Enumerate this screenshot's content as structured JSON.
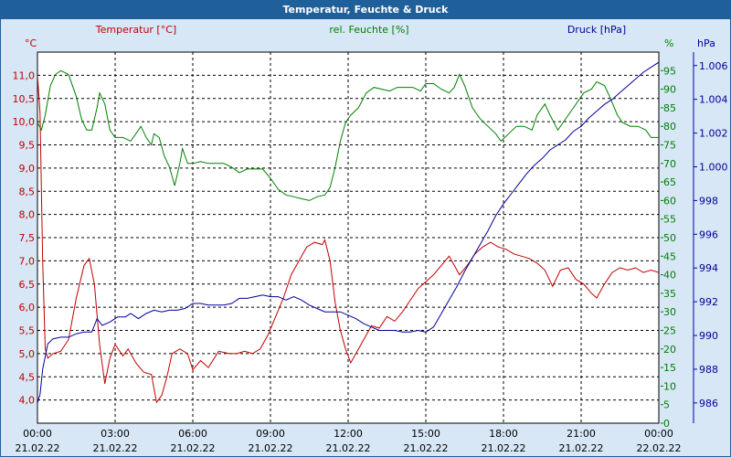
{
  "window": {
    "title": "Temperatur, Feuchte & Druck"
  },
  "chart_data": {
    "type": "line",
    "title": "Temperatur, Feuchte & Druck",
    "xlabel": "",
    "grid": true,
    "x": {
      "unit": "hours",
      "min": 0,
      "max": 24
    },
    "x_ticks": [
      {
        "h": 0,
        "time": "00:00",
        "date": "21.02.22"
      },
      {
        "h": 3,
        "time": "03:00",
        "date": "21.02.22"
      },
      {
        "h": 6,
        "time": "06:00",
        "date": "21.02.22"
      },
      {
        "h": 9,
        "time": "09:00",
        "date": "21.02.22"
      },
      {
        "h": 12,
        "time": "12:00",
        "date": "21.02.22"
      },
      {
        "h": 15,
        "time": "15:00",
        "date": "21.02.22"
      },
      {
        "h": 18,
        "time": "18:00",
        "date": "21.02.22"
      },
      {
        "h": 21,
        "time": "21:00",
        "date": "21.02.22"
      },
      {
        "h": 24,
        "time": "00:00",
        "date": "22.02.22"
      }
    ],
    "axes": {
      "temperature": {
        "label": "Temperatur [°C]",
        "unit_label": "°C",
        "ylim": [
          3.5,
          11.5
        ],
        "ticks": [
          "4,0",
          "4,5",
          "5,0",
          "5,5",
          "6,0",
          "6,5",
          "7,0",
          "7,5",
          "8,0",
          "8,5",
          "9,0",
          "9,5",
          "10,0",
          "10,5",
          "11,0"
        ],
        "color": "#c00000"
      },
      "humidity": {
        "label": "rel. Feuchte [%]",
        "unit_label": "%",
        "ylim": [
          0,
          100
        ],
        "ticks": [
          "0",
          "5",
          "10",
          "15",
          "20",
          "25",
          "30",
          "35",
          "40",
          "45",
          "50",
          "55",
          "60",
          "65",
          "70",
          "75",
          "80",
          "85",
          "90",
          "95"
        ],
        "color": "#008000"
      },
      "pressure": {
        "label": "Druck [hPa]",
        "unit_label": "hPa",
        "ylim": [
          984.8,
          1006.8
        ],
        "ticks": [
          "986",
          "988",
          "990",
          "992",
          "994",
          "996",
          "998",
          "1.000",
          "1.002",
          "1.004",
          "1.006"
        ],
        "color": "#000099"
      }
    },
    "series": [
      {
        "name": "Temperatur [°C]",
        "axis": "temperature",
        "color": "#c00000",
        "points": [
          [
            0,
            11.0
          ],
          [
            0.1,
            10.2
          ],
          [
            0.2,
            7.0
          ],
          [
            0.3,
            5.1
          ],
          [
            0.4,
            4.9
          ],
          [
            0.6,
            5.0
          ],
          [
            0.9,
            5.05
          ],
          [
            1.2,
            5.3
          ],
          [
            1.5,
            6.2
          ],
          [
            1.8,
            6.9
          ],
          [
            2.0,
            7.05
          ],
          [
            2.2,
            6.5
          ],
          [
            2.4,
            5.2
          ],
          [
            2.6,
            4.35
          ],
          [
            2.8,
            4.9
          ],
          [
            3.0,
            5.2
          ],
          [
            3.3,
            4.95
          ],
          [
            3.5,
            5.1
          ],
          [
            3.8,
            4.8
          ],
          [
            4.1,
            4.6
          ],
          [
            4.4,
            4.55
          ],
          [
            4.6,
            3.95
          ],
          [
            4.8,
            4.1
          ],
          [
            5.0,
            4.5
          ],
          [
            5.2,
            5.0
          ],
          [
            5.5,
            5.1
          ],
          [
            5.8,
            5.0
          ],
          [
            6.0,
            4.65
          ],
          [
            6.3,
            4.85
          ],
          [
            6.6,
            4.7
          ],
          [
            7.0,
            5.05
          ],
          [
            7.4,
            5.0
          ],
          [
            7.7,
            5.0
          ],
          [
            8.0,
            5.05
          ],
          [
            8.3,
            5.0
          ],
          [
            8.6,
            5.1
          ],
          [
            8.9,
            5.4
          ],
          [
            9.2,
            5.8
          ],
          [
            9.5,
            6.2
          ],
          [
            9.8,
            6.7
          ],
          [
            10.1,
            7.0
          ],
          [
            10.4,
            7.3
          ],
          [
            10.7,
            7.4
          ],
          [
            11.0,
            7.35
          ],
          [
            11.1,
            7.45
          ],
          [
            11.3,
            7.0
          ],
          [
            11.5,
            6.1
          ],
          [
            11.7,
            5.5
          ],
          [
            11.9,
            5.1
          ],
          [
            12.1,
            4.8
          ],
          [
            12.3,
            5.0
          ],
          [
            12.6,
            5.3
          ],
          [
            12.9,
            5.6
          ],
          [
            13.2,
            5.55
          ],
          [
            13.5,
            5.8
          ],
          [
            13.8,
            5.7
          ],
          [
            14.1,
            5.9
          ],
          [
            14.4,
            6.15
          ],
          [
            14.7,
            6.4
          ],
          [
            15.0,
            6.55
          ],
          [
            15.3,
            6.7
          ],
          [
            15.6,
            6.9
          ],
          [
            15.9,
            7.1
          ],
          [
            16.1,
            6.9
          ],
          [
            16.3,
            6.7
          ],
          [
            16.6,
            6.9
          ],
          [
            16.9,
            7.15
          ],
          [
            17.2,
            7.3
          ],
          [
            17.5,
            7.4
          ],
          [
            17.8,
            7.3
          ],
          [
            18.1,
            7.25
          ],
          [
            18.4,
            7.15
          ],
          [
            18.7,
            7.1
          ],
          [
            19.0,
            7.05
          ],
          [
            19.3,
            6.95
          ],
          [
            19.6,
            6.8
          ],
          [
            19.9,
            6.45
          ],
          [
            20.2,
            6.8
          ],
          [
            20.5,
            6.85
          ],
          [
            20.8,
            6.6
          ],
          [
            21.1,
            6.5
          ],
          [
            21.4,
            6.3
          ],
          [
            21.6,
            6.2
          ],
          [
            21.9,
            6.5
          ],
          [
            22.2,
            6.75
          ],
          [
            22.5,
            6.85
          ],
          [
            22.8,
            6.8
          ],
          [
            23.1,
            6.85
          ],
          [
            23.4,
            6.75
          ],
          [
            23.7,
            6.8
          ],
          [
            24.0,
            6.75
          ]
        ]
      },
      {
        "name": "rel. Feuchte [%]",
        "axis": "humidity",
        "color": "#008000",
        "points": [
          [
            0,
            81
          ],
          [
            0.15,
            79
          ],
          [
            0.3,
            83
          ],
          [
            0.5,
            91
          ],
          [
            0.7,
            94
          ],
          [
            0.9,
            95
          ],
          [
            1.2,
            94
          ],
          [
            1.5,
            88
          ],
          [
            1.7,
            82
          ],
          [
            1.9,
            79
          ],
          [
            2.1,
            79
          ],
          [
            2.3,
            85
          ],
          [
            2.4,
            89
          ],
          [
            2.6,
            86
          ],
          [
            2.8,
            79
          ],
          [
            3.0,
            77
          ],
          [
            3.3,
            77
          ],
          [
            3.6,
            76
          ],
          [
            3.8,
            78
          ],
          [
            4.0,
            80
          ],
          [
            4.2,
            77
          ],
          [
            4.4,
            75
          ],
          [
            4.5,
            78
          ],
          [
            4.7,
            77
          ],
          [
            4.9,
            72
          ],
          [
            5.1,
            69
          ],
          [
            5.3,
            64
          ],
          [
            5.5,
            70
          ],
          [
            5.6,
            74
          ],
          [
            5.8,
            70
          ],
          [
            6.0,
            70
          ],
          [
            6.3,
            70.5
          ],
          [
            6.6,
            70
          ],
          [
            6.9,
            70
          ],
          [
            7.2,
            70
          ],
          [
            7.5,
            69
          ],
          [
            7.8,
            67.5
          ],
          [
            8.1,
            68.5
          ],
          [
            8.4,
            68.5
          ],
          [
            8.7,
            68.5
          ],
          [
            9.0,
            66
          ],
          [
            9.3,
            63
          ],
          [
            9.6,
            61.5
          ],
          [
            9.9,
            61
          ],
          [
            10.2,
            60.5
          ],
          [
            10.5,
            60
          ],
          [
            10.8,
            61
          ],
          [
            11.1,
            61.5
          ],
          [
            11.3,
            63.5
          ],
          [
            11.5,
            69
          ],
          [
            11.7,
            76
          ],
          [
            11.9,
            81
          ],
          [
            12.1,
            83
          ],
          [
            12.4,
            85
          ],
          [
            12.7,
            89
          ],
          [
            13.0,
            90.5
          ],
          [
            13.3,
            90
          ],
          [
            13.6,
            89.5
          ],
          [
            13.9,
            90.5
          ],
          [
            14.2,
            90.5
          ],
          [
            14.5,
            90.5
          ],
          [
            14.8,
            89.5
          ],
          [
            15.0,
            91.5
          ],
          [
            15.3,
            91.5
          ],
          [
            15.6,
            90
          ],
          [
            15.9,
            89
          ],
          [
            16.1,
            90.5
          ],
          [
            16.3,
            94
          ],
          [
            16.5,
            91
          ],
          [
            16.8,
            85
          ],
          [
            17.1,
            82
          ],
          [
            17.4,
            80
          ],
          [
            17.7,
            78
          ],
          [
            17.9,
            76
          ],
          [
            18.2,
            78
          ],
          [
            18.5,
            80
          ],
          [
            18.8,
            80
          ],
          [
            19.1,
            79
          ],
          [
            19.3,
            83
          ],
          [
            19.6,
            86
          ],
          [
            19.8,
            83
          ],
          [
            20.1,
            79
          ],
          [
            20.3,
            81
          ],
          [
            20.6,
            84
          ],
          [
            20.9,
            87
          ],
          [
            21.1,
            89
          ],
          [
            21.4,
            90
          ],
          [
            21.6,
            92
          ],
          [
            21.9,
            91
          ],
          [
            22.1,
            88
          ],
          [
            22.4,
            83
          ],
          [
            22.6,
            81
          ],
          [
            22.9,
            80
          ],
          [
            23.2,
            80
          ],
          [
            23.5,
            79
          ],
          [
            23.7,
            77
          ],
          [
            24.0,
            77
          ]
        ]
      },
      {
        "name": "Druck [hPa]",
        "axis": "pressure",
        "color": "#000099",
        "points": [
          [
            0,
            986.0
          ],
          [
            0.1,
            986.5
          ],
          [
            0.2,
            988.0
          ],
          [
            0.4,
            989.5
          ],
          [
            0.6,
            989.8
          ],
          [
            0.9,
            989.9
          ],
          [
            1.2,
            989.9
          ],
          [
            1.5,
            990.1
          ],
          [
            1.8,
            990.2
          ],
          [
            2.1,
            990.2
          ],
          [
            2.3,
            991.0
          ],
          [
            2.5,
            990.6
          ],
          [
            2.8,
            990.8
          ],
          [
            3.1,
            991.1
          ],
          [
            3.4,
            991.1
          ],
          [
            3.6,
            991.3
          ],
          [
            3.9,
            991.0
          ],
          [
            4.2,
            991.3
          ],
          [
            4.5,
            991.5
          ],
          [
            4.8,
            991.4
          ],
          [
            5.1,
            991.5
          ],
          [
            5.4,
            991.5
          ],
          [
            5.7,
            991.6
          ],
          [
            6.0,
            991.9
          ],
          [
            6.3,
            991.9
          ],
          [
            6.6,
            991.8
          ],
          [
            6.9,
            991.8
          ],
          [
            7.2,
            991.8
          ],
          [
            7.5,
            991.9
          ],
          [
            7.8,
            992.2
          ],
          [
            8.1,
            992.2
          ],
          [
            8.4,
            992.3
          ],
          [
            8.7,
            992.4
          ],
          [
            9.0,
            992.3
          ],
          [
            9.3,
            992.3
          ],
          [
            9.6,
            992.1
          ],
          [
            9.9,
            992.3
          ],
          [
            10.2,
            992.1
          ],
          [
            10.5,
            991.8
          ],
          [
            10.8,
            991.6
          ],
          [
            11.1,
            991.4
          ],
          [
            11.4,
            991.4
          ],
          [
            11.7,
            991.4
          ],
          [
            12.0,
            991.2
          ],
          [
            12.3,
            991.0
          ],
          [
            12.6,
            990.7
          ],
          [
            12.9,
            990.5
          ],
          [
            13.2,
            990.3
          ],
          [
            13.5,
            990.3
          ],
          [
            13.8,
            990.3
          ],
          [
            14.1,
            990.2
          ],
          [
            14.4,
            990.2
          ],
          [
            14.7,
            990.3
          ],
          [
            15.0,
            990.2
          ],
          [
            15.3,
            990.5
          ],
          [
            15.6,
            991.3
          ],
          [
            15.9,
            992.1
          ],
          [
            16.2,
            992.9
          ],
          [
            16.5,
            993.8
          ],
          [
            16.8,
            994.6
          ],
          [
            17.1,
            995.4
          ],
          [
            17.4,
            996.2
          ],
          [
            17.7,
            997.1
          ],
          [
            18.0,
            997.8
          ],
          [
            18.3,
            998.4
          ],
          [
            18.6,
            999.0
          ],
          [
            18.9,
            999.6
          ],
          [
            19.2,
            1000.1
          ],
          [
            19.5,
            1000.5
          ],
          [
            19.8,
            1001.0
          ],
          [
            20.1,
            1001.3
          ],
          [
            20.4,
            1001.6
          ],
          [
            20.7,
            1002.1
          ],
          [
            21.0,
            1002.4
          ],
          [
            21.3,
            1002.9
          ],
          [
            21.6,
            1003.3
          ],
          [
            21.9,
            1003.7
          ],
          [
            22.2,
            1004.0
          ],
          [
            22.5,
            1004.4
          ],
          [
            22.8,
            1004.8
          ],
          [
            23.1,
            1005.2
          ],
          [
            23.4,
            1005.6
          ],
          [
            23.7,
            1005.9
          ],
          [
            24.0,
            1006.2
          ]
        ]
      }
    ]
  }
}
